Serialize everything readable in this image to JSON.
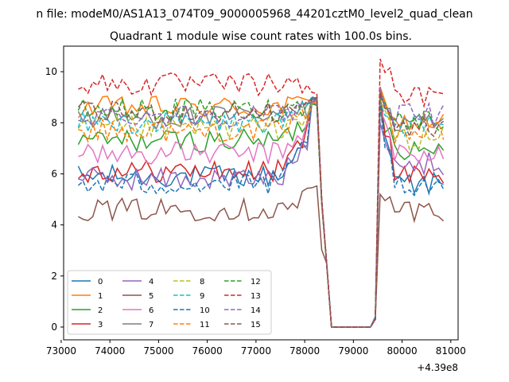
{
  "chart_data": {
    "type": "line",
    "suptitle": "n file: modeM0/AS1A13_074T09_9000005968_44201cztM0_level2_quad_clean",
    "title": "Quadrant 1 module wise count rates with 100.0s bins.",
    "xlabel": "",
    "ylabel": "",
    "x_offset_label": "+4.39e8",
    "xlim": [
      73050,
      81150
    ],
    "ylim": [
      -0.5,
      11.0
    ],
    "x_ticks": [
      73000,
      74000,
      75000,
      76000,
      77000,
      78000,
      79000,
      80000,
      81000
    ],
    "x_tick_labels": [
      "73000",
      "74000",
      "75000",
      "76000",
      "77000",
      "78000",
      "79000",
      "80000",
      "81000"
    ],
    "y_ticks": [
      0,
      2,
      4,
      6,
      8,
      10
    ],
    "y_tick_labels": [
      "0",
      "2",
      "4",
      "6",
      "8",
      "10"
    ],
    "legend_position": "lower-left",
    "grid": false,
    "x_range": [
      73350,
      80850
    ],
    "x_step": 100,
    "gap": {
      "start": 78350,
      "end": 79550,
      "low": 0.0
    },
    "series": [
      {
        "name": "0",
        "color": "#1f77b4",
        "dash": "solid",
        "base": 5.9,
        "pre_end": 8.9,
        "post_spike": 8.6,
        "post": 5.6,
        "dip": 0.1
      },
      {
        "name": "1",
        "color": "#ff7f0e",
        "dash": "solid",
        "base": 8.6,
        "pre_end": 8.9,
        "post_spike": 9.4,
        "post": 8.0,
        "dip": 0.0
      },
      {
        "name": "2",
        "color": "#2ca02c",
        "dash": "solid",
        "base": 7.3,
        "pre_end": 8.8,
        "post_spike": 9.0,
        "post": 7.0,
        "dip": 0.0
      },
      {
        "name": "3",
        "color": "#d62728",
        "dash": "solid",
        "base": 6.1,
        "pre_end": 9.0,
        "post_spike": 9.1,
        "post": 6.0,
        "dip": 0.0
      },
      {
        "name": "4",
        "color": "#9467bd",
        "dash": "solid",
        "base": 5.8,
        "pre_end": 8.8,
        "post_spike": 8.0,
        "post": 6.4,
        "dip": 0.0
      },
      {
        "name": "5",
        "color": "#8c564b",
        "dash": "solid",
        "base": 4.6,
        "pre_end": 5.5,
        "post_spike": 5.2,
        "post": 4.6,
        "dip": 0.0
      },
      {
        "name": "6",
        "color": "#e377c2",
        "dash": "solid",
        "base": 6.8,
        "pre_end": 8.9,
        "post_spike": 8.5,
        "post": 6.8,
        "dip": 0.0
      },
      {
        "name": "7",
        "color": "#7f7f7f",
        "dash": "solid",
        "base": 8.2,
        "pre_end": 9.0,
        "post_spike": 9.2,
        "post": 7.9,
        "dip": 0.0
      },
      {
        "name": "8",
        "color": "#bcbd22",
        "dash": "dashed",
        "base": 7.8,
        "pre_end": 8.8,
        "post_spike": 8.9,
        "post": 7.4,
        "dip": 0.0
      },
      {
        "name": "9",
        "color": "#17becf",
        "dash": "dashed",
        "base": 8.0,
        "pre_end": 8.9,
        "post_spike": 8.8,
        "post": 7.9,
        "dip": 0.0
      },
      {
        "name": "10",
        "color": "#1f77b4",
        "dash": "dashed",
        "base": 5.6,
        "pre_end": 9.0,
        "post_spike": 8.7,
        "post": 5.6,
        "dip": 0.0
      },
      {
        "name": "11",
        "color": "#ff7f0e",
        "dash": "dashed",
        "base": 7.7,
        "pre_end": 8.9,
        "post_spike": 9.3,
        "post": 7.6,
        "dip": 0.0
      },
      {
        "name": "12",
        "color": "#2ca02c",
        "dash": "dashed",
        "base": 8.5,
        "pre_end": 8.8,
        "post_spike": 9.0,
        "post": 8.1,
        "dip": 0.0
      },
      {
        "name": "13",
        "color": "#d62728",
        "dash": "dashed",
        "base": 9.5,
        "pre_end": 9.2,
        "post_spike": 10.5,
        "post": 9.0,
        "dip": 0.0
      },
      {
        "name": "14",
        "color": "#9467bd",
        "dash": "dashed",
        "base": 8.3,
        "pre_end": 8.9,
        "post_spike": 9.4,
        "post": 8.3,
        "dip": 0.0
      },
      {
        "name": "15",
        "color": "#8c564b",
        "dash": "dashed",
        "base": 8.4,
        "pre_end": 8.9,
        "post_spike": 9.2,
        "post": 7.8,
        "dip": 0.0
      }
    ]
  }
}
